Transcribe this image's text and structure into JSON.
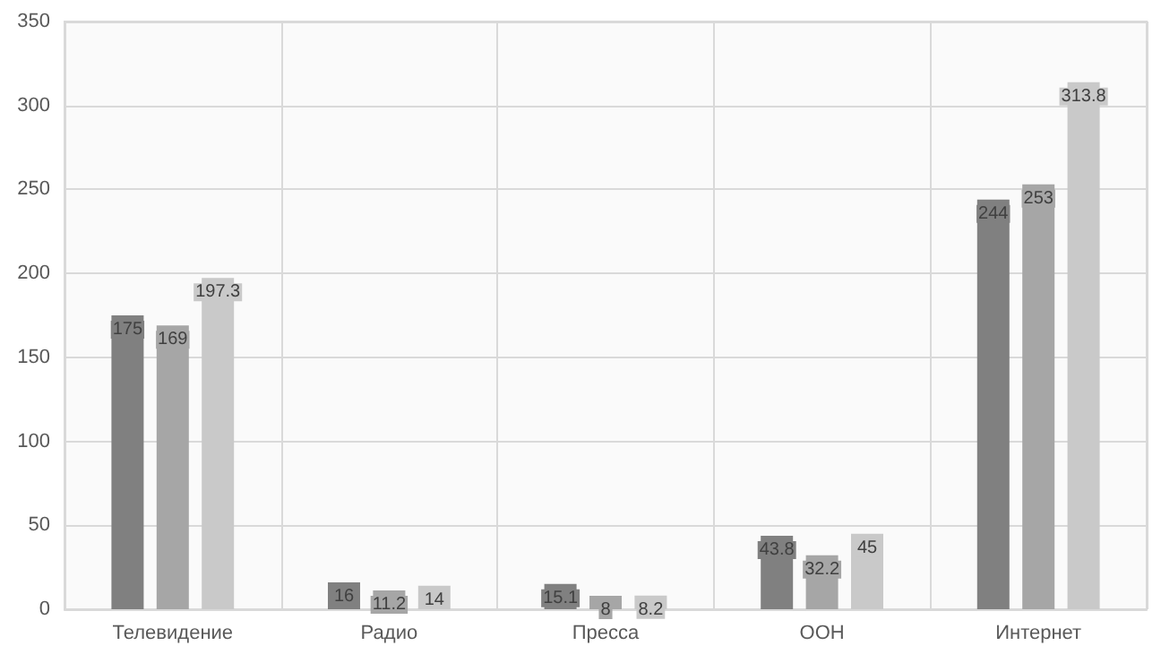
{
  "chart_data": {
    "type": "bar",
    "categories": [
      "Телевидение",
      "Радио",
      "Пресса",
      "OOH",
      "Интернет"
    ],
    "series": [
      {
        "color": "#808080",
        "values": [
          175,
          16,
          15.1,
          43.8,
          244
        ]
      },
      {
        "color": "#a6a6a6",
        "values": [
          169,
          11.2,
          8,
          32.2,
          253
        ]
      },
      {
        "color": "#c9c9c9",
        "values": [
          197.3,
          14,
          8.2,
          45,
          313.8
        ]
      }
    ],
    "ylim": [
      0,
      350
    ],
    "yticks": [
      0,
      50,
      100,
      150,
      200,
      250,
      300,
      350
    ],
    "grid": true,
    "data_labels": true
  }
}
